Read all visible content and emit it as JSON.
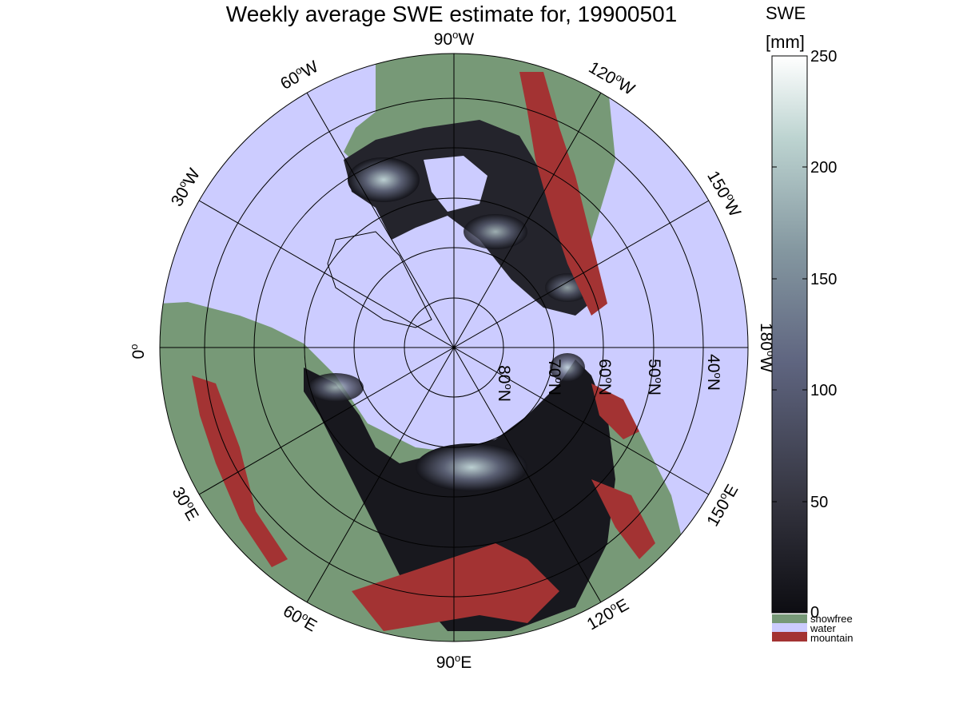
{
  "title": "Weekly average SWE estimate for, 19900501",
  "colorbar": {
    "title_line1": "SWE",
    "title_line2": "[mm]",
    "ticks": [
      "0",
      "50",
      "100",
      "150",
      "200",
      "250"
    ],
    "range": [
      0,
      250
    ]
  },
  "legend": [
    {
      "label": "snowfree",
      "color": "#779977"
    },
    {
      "label": "water",
      "color": "#ccccff"
    },
    {
      "label": "mountain",
      "color": "#a33333"
    }
  ],
  "longitude_labels": [
    {
      "deg": "90",
      "hemi": "W"
    },
    {
      "deg": "120",
      "hemi": "W"
    },
    {
      "deg": "150",
      "hemi": "W"
    },
    {
      "deg": "180",
      "hemi": "W"
    },
    {
      "deg": "150",
      "hemi": "E"
    },
    {
      "deg": "120",
      "hemi": "E"
    },
    {
      "deg": "90",
      "hemi": "E"
    },
    {
      "deg": "60",
      "hemi": "E"
    },
    {
      "deg": "30",
      "hemi": "E"
    },
    {
      "deg": "0",
      "hemi": ""
    },
    {
      "deg": "30",
      "hemi": "W"
    },
    {
      "deg": "60",
      "hemi": "W"
    }
  ],
  "latitude_labels": [
    {
      "deg": "80",
      "hemi": "N"
    },
    {
      "deg": "70",
      "hemi": "N"
    },
    {
      "deg": "60",
      "hemi": "N"
    },
    {
      "deg": "50",
      "hemi": "N"
    },
    {
      "deg": "40",
      "hemi": "N"
    }
  ],
  "colors": {
    "water": "#ccccff",
    "snowfree": "#779977",
    "mountain": "#a33333",
    "swe_low": "#0d0d12",
    "swe_high": "#ffffff"
  }
}
